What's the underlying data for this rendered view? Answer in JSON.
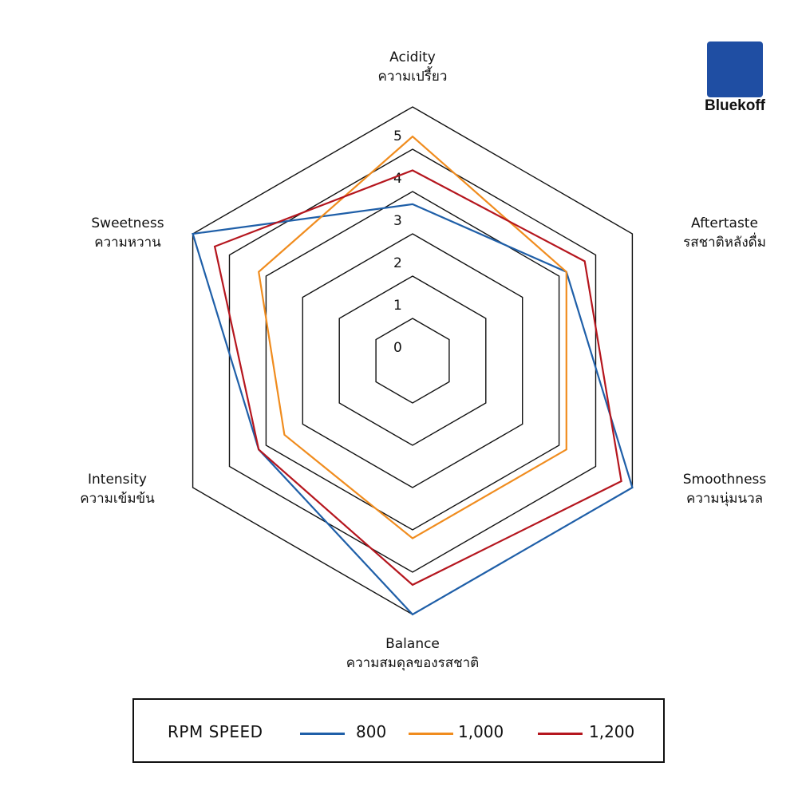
{
  "chart_data": {
    "type": "radar",
    "axes": [
      {
        "en": "Acidity",
        "th": "ความเปรี้ยว"
      },
      {
        "en": "Aftertaste",
        "th": "รสชาติหลังดื่ม"
      },
      {
        "en": "Smoothness",
        "th": "ความนุ่มนวล"
      },
      {
        "en": "Balance",
        "th": "ความสมดุลของรสชาติ"
      },
      {
        "en": "Intensity",
        "th": "ความเข้มข้น"
      },
      {
        "en": "Sweetness",
        "th": "ความหวาน"
      }
    ],
    "ticks": [
      "0",
      "1",
      "2",
      "3",
      "4",
      "5"
    ],
    "range": [
      0,
      6
    ],
    "series": [
      {
        "name": "800",
        "color": "#1f5fa8",
        "values": [
          3.7,
          4.2,
          6.0,
          6.0,
          4.2,
          6.0
        ]
      },
      {
        "name": "1,000",
        "color": "#f08c1e",
        "values": [
          5.3,
          4.2,
          4.2,
          4.2,
          3.5,
          4.2
        ]
      },
      {
        "name": "1,200",
        "color": "#b5161e",
        "values": [
          4.5,
          4.7,
          5.7,
          5.3,
          4.2,
          5.4
        ]
      }
    ]
  },
  "legend": {
    "title": "RPM SPEED"
  },
  "brand": {
    "name": "Bluekoff",
    "color": "#1f4ea3"
  }
}
